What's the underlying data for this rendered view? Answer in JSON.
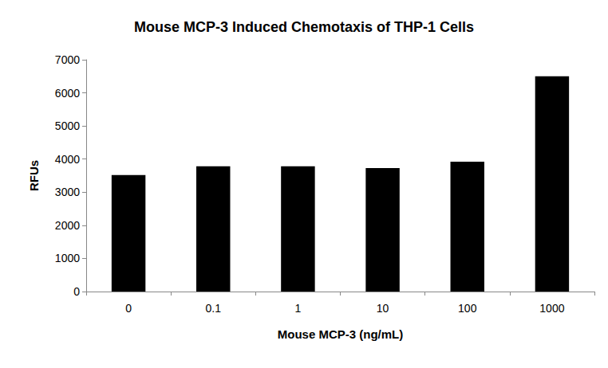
{
  "chart_data": {
    "type": "bar",
    "title": "Mouse MCP-3 Induced Chemotaxis of THP-1 Cells",
    "x_label": "Mouse MCP-3 (ng/mL)",
    "y_label": "RFUs",
    "categories": [
      "0",
      "0.1",
      "1",
      "10",
      "100",
      "1000"
    ],
    "values": [
      3520,
      3780,
      3780,
      3730,
      3920,
      6500
    ],
    "color": "#000000",
    "ylim": [
      0,
      7000
    ],
    "yticks": [
      0,
      1000,
      2000,
      3000,
      4000,
      5000,
      6000,
      7000
    ],
    "grid": false
  }
}
